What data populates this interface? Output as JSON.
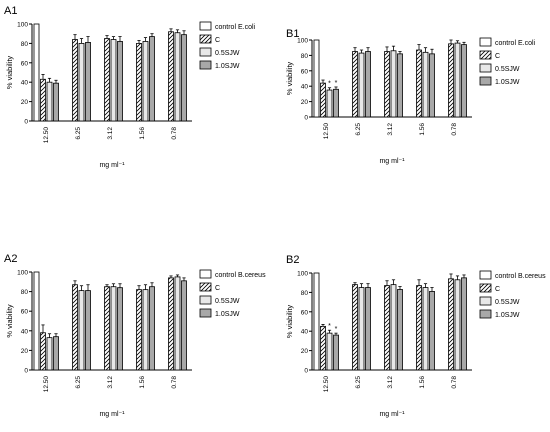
{
  "chart_data": [
    {
      "type": "bar",
      "panel": "A1",
      "categories": [
        "12.50",
        "6.25",
        "3.12",
        "1.56",
        "0.78"
      ],
      "series": [
        {
          "name": "control E.coli",
          "values": [
            100,
            null,
            null,
            null,
            null
          ],
          "errors": [
            0,
            0,
            0,
            0,
            0
          ],
          "pattern": "white"
        },
        {
          "name": "C",
          "values": [
            43,
            84,
            85,
            80,
            92
          ],
          "errors": [
            5,
            5,
            3,
            3,
            3
          ],
          "pattern": "hatch"
        },
        {
          "name": "0.5SJW",
          "values": [
            40,
            80,
            84,
            82,
            91
          ],
          "errors": [
            4,
            5,
            3,
            4,
            3
          ],
          "pattern": "light"
        },
        {
          "name": "1.0SJW",
          "values": [
            39,
            81,
            82,
            87,
            89
          ],
          "errors": [
            3,
            6,
            5,
            3,
            4
          ],
          "pattern": "gray"
        }
      ],
      "annotations": [
        [
          "",
          "",
          "",
          ""
        ],
        [
          "",
          "",
          "",
          ""
        ],
        [
          "",
          "",
          "",
          ""
        ],
        [
          "",
          "",
          "",
          ""
        ],
        [
          "",
          "",
          "",
          ""
        ]
      ],
      "xlabel": "mg ml⁻¹",
      "ylabel": "% viability",
      "ylim": [
        0,
        100
      ],
      "yticks": [
        0,
        20,
        40,
        60,
        80,
        100
      ],
      "legend": "right"
    },
    {
      "type": "bar",
      "panel": "B1",
      "categories": [
        "12.50",
        "6.25",
        "3.12",
        "1.56",
        "0.78"
      ],
      "series": [
        {
          "name": "control E.coli",
          "values": [
            100,
            null,
            null,
            null,
            null
          ],
          "errors": [
            0,
            0,
            0,
            0,
            0
          ],
          "pattern": "white"
        },
        {
          "name": "C",
          "values": [
            44,
            85,
            85,
            87,
            95
          ],
          "errors": [
            4,
            5,
            6,
            7,
            5
          ],
          "pattern": "hatch"
        },
        {
          "name": "0.5SJW",
          "values": [
            35,
            83,
            86,
            84,
            96
          ],
          "errors": [
            3,
            4,
            6,
            6,
            3
          ],
          "pattern": "light"
        },
        {
          "name": "1.0SJW",
          "values": [
            36,
            85,
            82,
            82,
            94
          ],
          "errors": [
            3,
            5,
            3,
            6,
            3
          ],
          "pattern": "gray"
        }
      ],
      "annotations": [
        [
          "",
          "",
          "*",
          "*"
        ],
        [
          "",
          "",
          "",
          ""
        ],
        [
          "",
          "",
          "",
          ""
        ],
        [
          "",
          "",
          "",
          ""
        ],
        [
          "",
          "",
          "",
          ""
        ]
      ],
      "xlabel": "mg ml⁻¹",
      "ylabel": "% viability",
      "ylim": [
        0,
        100
      ],
      "yticks": [
        0,
        20,
        40,
        60,
        80,
        100
      ],
      "legend": "right"
    },
    {
      "type": "bar",
      "panel": "A2",
      "categories": [
        "12.50",
        "6.25",
        "3.12",
        "1.56",
        "0.78"
      ],
      "series": [
        {
          "name": "control B.cereus",
          "values": [
            100,
            null,
            null,
            null,
            null
          ],
          "errors": [
            0,
            0,
            0,
            0,
            0
          ],
          "pattern": "white"
        },
        {
          "name": "C",
          "values": [
            38,
            87,
            85,
            82,
            94
          ],
          "errors": [
            8,
            4,
            2,
            4,
            2
          ],
          "pattern": "hatch"
        },
        {
          "name": "0.5SJW",
          "values": [
            33,
            81,
            85,
            82,
            95
          ],
          "errors": [
            4,
            5,
            3,
            5,
            2
          ],
          "pattern": "light"
        },
        {
          "name": "1.0SJW",
          "values": [
            34,
            81,
            84,
            85,
            91
          ],
          "errors": [
            3,
            6,
            4,
            4,
            3
          ],
          "pattern": "gray"
        }
      ],
      "annotations": [
        [
          "",
          "",
          "",
          ""
        ],
        [
          "",
          "",
          "",
          ""
        ],
        [
          "",
          "",
          "",
          ""
        ],
        [
          "",
          "",
          "",
          ""
        ],
        [
          "",
          "",
          "",
          ""
        ]
      ],
      "xlabel": "mg ml⁻¹",
      "ylabel": "% viability",
      "ylim": [
        0,
        100
      ],
      "yticks": [
        0,
        20,
        40,
        60,
        80,
        100
      ],
      "legend": "right"
    },
    {
      "type": "bar",
      "panel": "B2",
      "categories": [
        "12.50",
        "6.25",
        "3.12",
        "1.56",
        "0.78"
      ],
      "series": [
        {
          "name": "control B.cereus",
          "values": [
            100,
            null,
            null,
            null,
            null
          ],
          "errors": [
            0,
            0,
            0,
            0,
            0
          ],
          "pattern": "white"
        },
        {
          "name": "C",
          "values": [
            45,
            88,
            87,
            87,
            94
          ],
          "errors": [
            2,
            2,
            5,
            6,
            5
          ],
          "pattern": "hatch"
        },
        {
          "name": "0.5SJW",
          "values": [
            38,
            85,
            88,
            85,
            93
          ],
          "errors": [
            3,
            4,
            5,
            4,
            4
          ],
          "pattern": "light"
        },
        {
          "name": "1.0SJW",
          "values": [
            36,
            85,
            83,
            81,
            95
          ],
          "errors": [
            2,
            4,
            3,
            4,
            3
          ],
          "pattern": "gray"
        }
      ],
      "annotations": [
        [
          "",
          "",
          "*",
          "*"
        ],
        [
          "",
          "",
          "",
          ""
        ],
        [
          "",
          "",
          "",
          ""
        ],
        [
          "",
          "",
          "",
          ""
        ],
        [
          "",
          "",
          "",
          ""
        ]
      ],
      "xlabel": "mg ml⁻¹",
      "ylabel": "% viability",
      "ylim": [
        0,
        100
      ],
      "yticks": [
        0,
        20,
        40,
        60,
        80,
        100
      ],
      "legend": "right"
    }
  ],
  "colors": {
    "white": "#ffffff",
    "light": "#e8e8e8",
    "gray": "#a8a8a8",
    "hatch_line": "#000000",
    "axis": "#000000"
  }
}
